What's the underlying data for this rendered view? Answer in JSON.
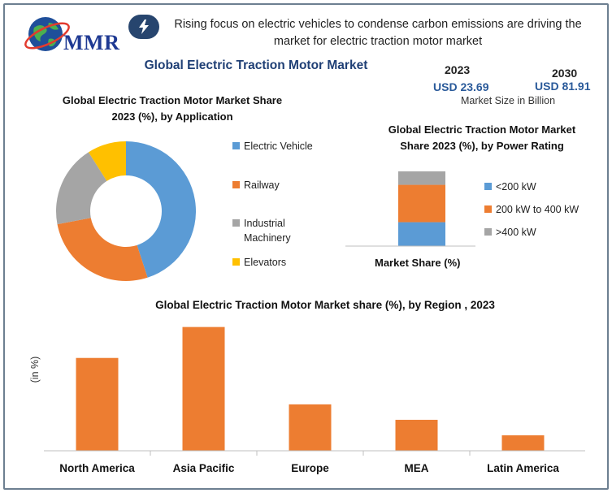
{
  "header": {
    "logo_text": "MMR",
    "headline": "Rising focus on electric vehicles to condense carbon emissions are driving the market for electric traction motor market",
    "main_title": "Global Electric Traction Motor Market"
  },
  "market_size": {
    "year_start": "2023",
    "value_start": "USD 23.69",
    "year_end": "2030",
    "value_end": "USD 81.91",
    "label": "Market Size in Billion"
  },
  "icons": {
    "logo": "globe-icon",
    "badge": "lightning-icon"
  },
  "chart_data": [
    {
      "type": "pie",
      "title": "Global Electric Traction Motor Market Share 2023 (%), by Application",
      "categories": [
        "Electric Vehicle",
        "Railway",
        "Industrial Machinery",
        "Elevators"
      ],
      "values": [
        45,
        27,
        19,
        9
      ],
      "colors": [
        "#5b9bd5",
        "#ed7d31",
        "#a5a5a5",
        "#ffc000"
      ],
      "donut": true,
      "legend": "right"
    },
    {
      "type": "bar",
      "stacked": true,
      "title": "Global  Electric Traction Motor Market Share 2023 (%), by Power Rating",
      "categories": [
        "Market Share"
      ],
      "xlabel": "Market Share (%)",
      "series": [
        {
          "name": "<200 kW",
          "values": [
            32
          ],
          "color": "#5b9bd5"
        },
        {
          "name": "200 kW to 400 kW",
          "values": [
            50
          ],
          "color": "#ed7d31"
        },
        {
          "name": ">400 kW",
          "values": [
            18
          ],
          "color": "#a5a5a5"
        }
      ],
      "ylim": [
        0,
        100
      ],
      "legend": "right"
    },
    {
      "type": "bar",
      "title": "Global Electric Traction Motor Market share (%), by Region , 2023",
      "ylabel": "(in %)",
      "categories": [
        "North America",
        "Asia Pacific",
        "Europe",
        "MEA",
        "Latin America"
      ],
      "values": [
        30,
        40,
        15,
        10,
        5
      ],
      "color": "#ed7d31",
      "ylim": [
        0,
        42
      ]
    }
  ]
}
